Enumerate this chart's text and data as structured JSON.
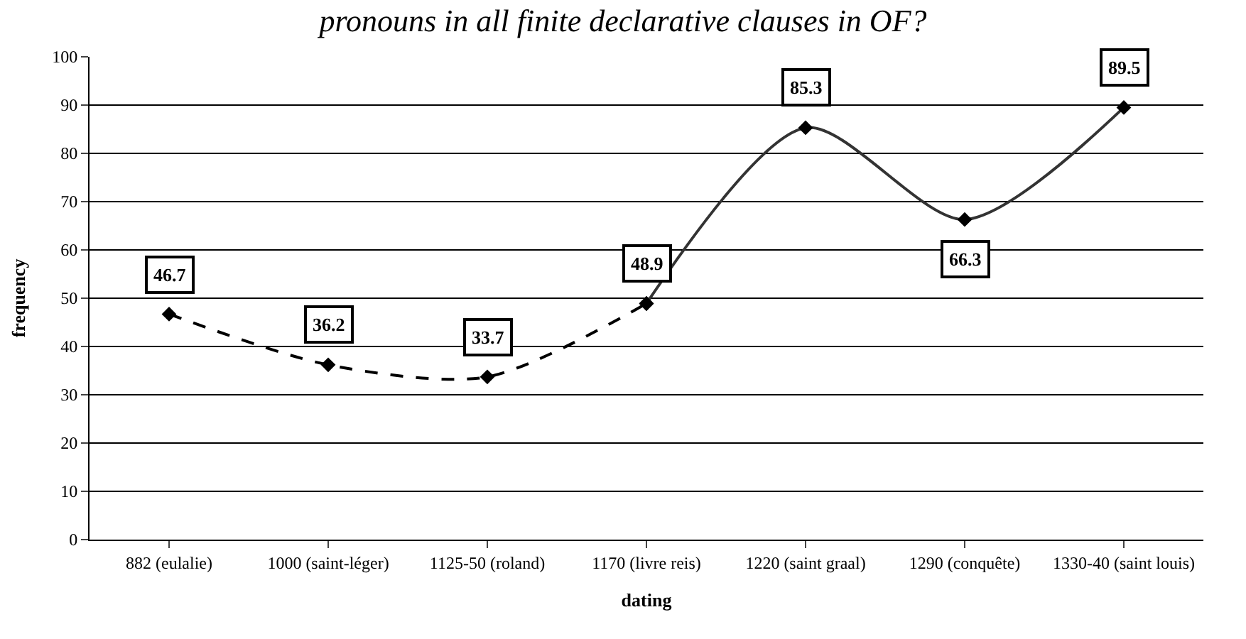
{
  "chart_data": {
    "type": "line",
    "title": "pronouns in all finite declarative clauses in OF?",
    "xlabel": "dating",
    "ylabel": "frequency",
    "categories": [
      "882 (eulalie)",
      "1000 (saint-léger)",
      "1125-50 (roland)",
      "1170 (livre reis)",
      "1220 (saint graal)",
      "1290 (conquête)",
      "1330-40 (saint louis)"
    ],
    "series": [
      {
        "color": "#000000",
        "line_style": "dashed",
        "values": [
          46.7,
          36.2,
          33.7,
          48.9,
          null,
          null,
          null
        ],
        "value_labels": [
          "46.7",
          "36.2",
          "33.7",
          null,
          null,
          null,
          null
        ]
      },
      {
        "color": "#333333",
        "line_style": "solid",
        "values": [
          null,
          null,
          null,
          48.9,
          85.3,
          66.3,
          89.5
        ],
        "value_labels": [
          null,
          null,
          null,
          "48.9",
          "85.3",
          "66.3",
          "89.5"
        ]
      }
    ],
    "ylim": [
      0,
      100
    ],
    "yticks": [
      0,
      10,
      20,
      30,
      40,
      50,
      60,
      70,
      80,
      90,
      100
    ],
    "grid": "y",
    "legend": false,
    "marker": "diamond"
  }
}
